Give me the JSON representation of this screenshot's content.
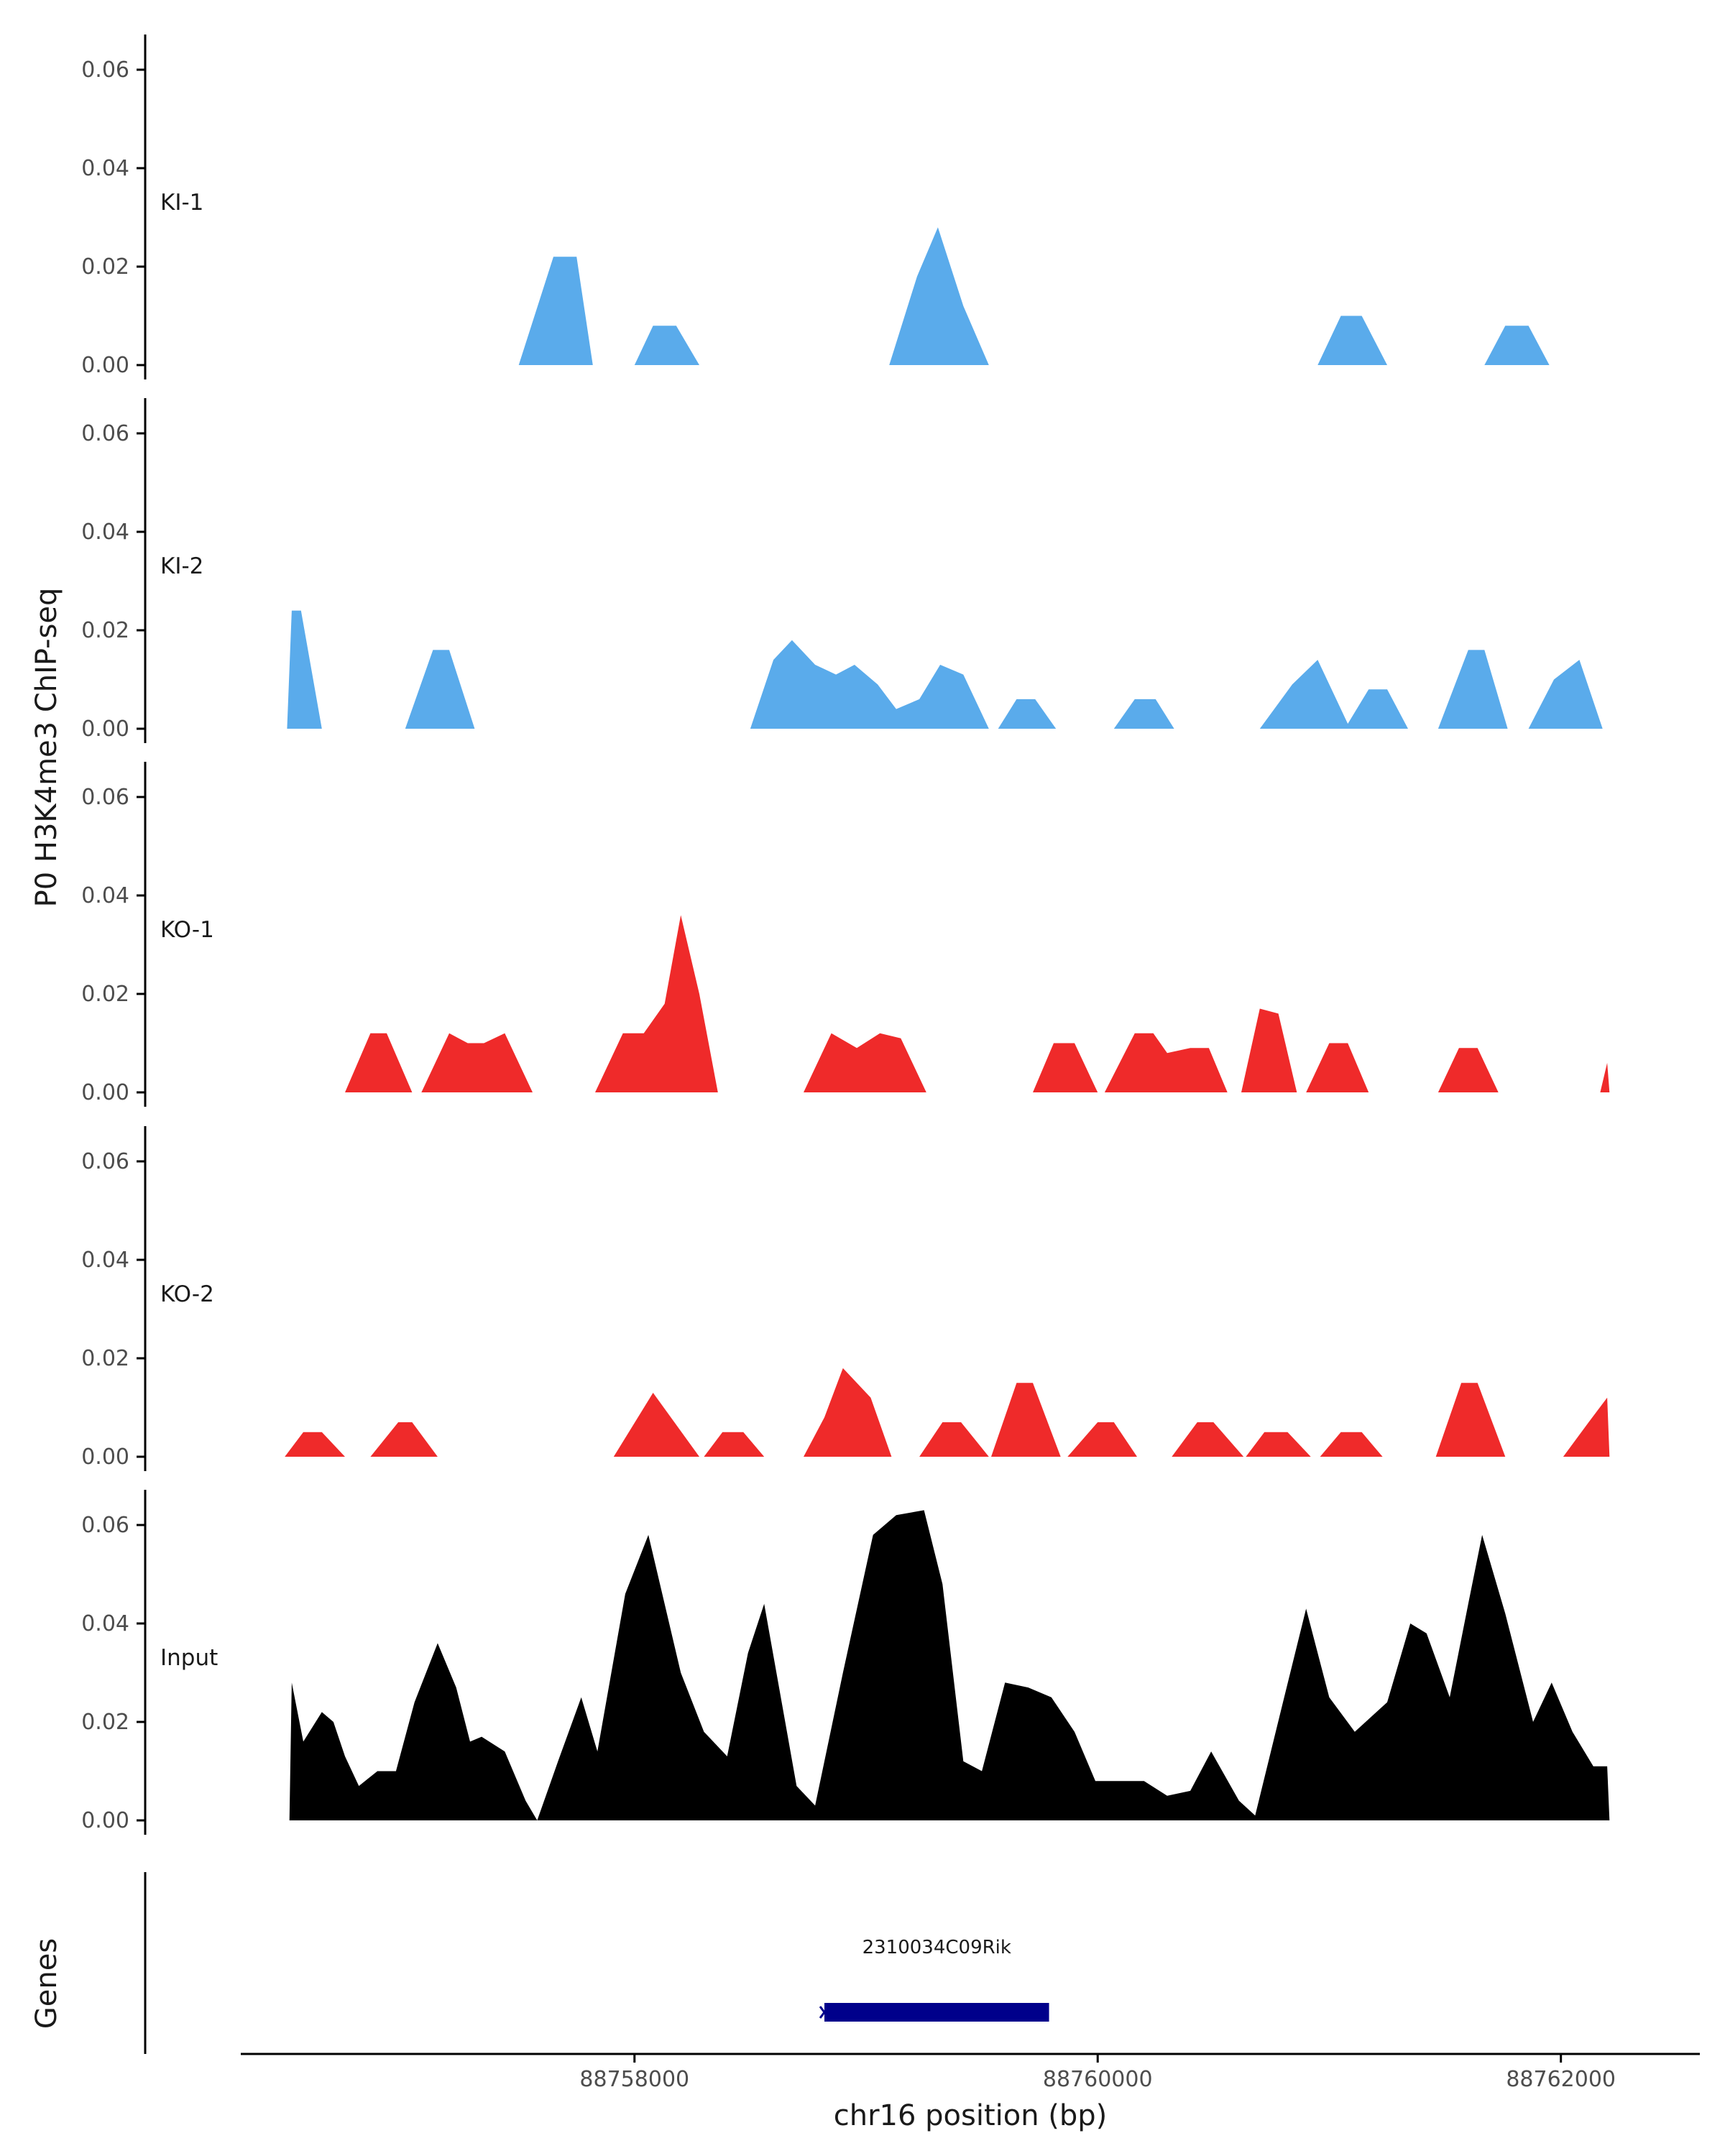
{
  "chart_data": {
    "type": "area",
    "ylabel": "P0 H3K4me3 ChIP-seq",
    "xlabel": "chr16 position (bp)",
    "xlim": [
      88756300,
      88762600
    ],
    "ylim": [
      0,
      0.068
    ],
    "x_ticks": [
      88758000,
      88760000,
      88762000
    ],
    "x_tick_labels": [
      "88758000",
      "88760000",
      "88762000"
    ],
    "y_ticks": [
      0,
      0.02,
      0.04,
      0.06
    ],
    "y_tick_labels": [
      "0.00",
      "0.02",
      "0.04",
      "0.06"
    ],
    "colors": {
      "KI": "#5aabeb",
      "KO": "#ef2a2a",
      "Input": "#000000",
      "gene": "#00008b"
    },
    "tracks": [
      {
        "name": "KI-1",
        "color": "#5aabeb",
        "peaks": [
          [
            [
              88757500,
              0
            ],
            [
              88757650,
              0.022
            ],
            [
              88757750,
              0.022
            ],
            [
              88757820,
              0
            ]
          ],
          [
            [
              88758000,
              0
            ],
            [
              88758080,
              0.008
            ],
            [
              88758180,
              0.008
            ],
            [
              88758280,
              0
            ]
          ],
          [
            [
              88759100,
              0
            ],
            [
              88759220,
              0.018
            ],
            [
              88759310,
              0.028
            ],
            [
              88759420,
              0.012
            ],
            [
              88759530,
              0
            ]
          ],
          [
            [
              88760950,
              0
            ],
            [
              88761050,
              0.01
            ],
            [
              88761140,
              0.01
            ],
            [
              88761250,
              0
            ]
          ],
          [
            [
              88761670,
              0
            ],
            [
              88761760,
              0.008
            ],
            [
              88761860,
              0.008
            ],
            [
              88761950,
              0
            ]
          ]
        ]
      },
      {
        "name": "KI-2",
        "color": "#5aabeb",
        "peaks": [
          [
            [
              88756500,
              0
            ],
            [
              88756520,
              0.024
            ],
            [
              88756560,
              0.024
            ],
            [
              88756650,
              0
            ]
          ],
          [
            [
              88757010,
              0
            ],
            [
              88757130,
              0.016
            ],
            [
              88757200,
              0.016
            ],
            [
              88757310,
              0
            ]
          ],
          [
            [
              88758500,
              0
            ],
            [
              88758600,
              0.014
            ],
            [
              88758680,
              0.018
            ],
            [
              88758780,
              0.013
            ],
            [
              88758870,
              0.011
            ],
            [
              88758950,
              0.013
            ],
            [
              88759050,
              0.009
            ],
            [
              88759130,
              0.004
            ],
            [
              88759230,
              0.006
            ],
            [
              88759320,
              0.013
            ],
            [
              88759420,
              0.011
            ],
            [
              88759530,
              0
            ]
          ],
          [
            [
              88759570,
              0
            ],
            [
              88759650,
              0.006
            ],
            [
              88759730,
              0.006
            ],
            [
              88759820,
              0
            ]
          ],
          [
            [
              88760070,
              0
            ],
            [
              88760160,
              0.006
            ],
            [
              88760250,
              0.006
            ],
            [
              88760330,
              0
            ]
          ],
          [
            [
              88760700,
              0
            ],
            [
              88760840,
              0.009
            ],
            [
              88760950,
              0.014
            ],
            [
              88761080,
              0.001
            ],
            [
              88761170,
              0.008
            ],
            [
              88761250,
              0.008
            ],
            [
              88761340,
              0
            ]
          ],
          [
            [
              88761470,
              0
            ],
            [
              88761600,
              0.016
            ],
            [
              88761670,
              0.016
            ],
            [
              88761770,
              0
            ]
          ],
          [
            [
              88761860,
              0
            ],
            [
              88761970,
              0.01
            ],
            [
              88762080,
              0.014
            ],
            [
              88762180,
              0
            ]
          ]
        ]
      },
      {
        "name": "KO-1",
        "color": "#ef2a2a",
        "peaks": [
          [
            [
              88756750,
              0
            ],
            [
              88756860,
              0.012
            ],
            [
              88756930,
              0.012
            ],
            [
              88757040,
              0
            ]
          ],
          [
            [
              88757080,
              0
            ],
            [
              88757200,
              0.012
            ],
            [
              88757280,
              0.01
            ],
            [
              88757350,
              0.01
            ],
            [
              88757440,
              0.012
            ],
            [
              88757560,
              0
            ]
          ],
          [
            [
              88757830,
              0
            ],
            [
              88757950,
              0.012
            ],
            [
              88758040,
              0.012
            ],
            [
              88758130,
              0.018
            ],
            [
              88758200,
              0.036
            ],
            [
              88758280,
              0.02
            ],
            [
              88758360,
              0
            ]
          ],
          [
            [
              88758730,
              0
            ],
            [
              88758850,
              0.012
            ],
            [
              88758960,
              0.009
            ],
            [
              88759060,
              0.012
            ],
            [
              88759150,
              0.011
            ],
            [
              88759260,
              0
            ]
          ],
          [
            [
              88759720,
              0
            ],
            [
              88759810,
              0.01
            ],
            [
              88759900,
              0.01
            ],
            [
              88760000,
              0
            ]
          ],
          [
            [
              88760030,
              0
            ],
            [
              88760160,
              0.012
            ],
            [
              88760240,
              0.012
            ],
            [
              88760300,
              0.008
            ],
            [
              88760400,
              0.009
            ],
            [
              88760480,
              0.009
            ],
            [
              88760560,
              0
            ]
          ],
          [
            [
              88760620,
              0
            ],
            [
              88760700,
              0.017
            ],
            [
              88760780,
              0.016
            ],
            [
              88760860,
              0
            ]
          ],
          [
            [
              88760900,
              0
            ],
            [
              88761000,
              0.01
            ],
            [
              88761080,
              0.01
            ],
            [
              88761170,
              0
            ]
          ],
          [
            [
              88761470,
              0
            ],
            [
              88761560,
              0.009
            ],
            [
              88761640,
              0.009
            ],
            [
              88761730,
              0
            ]
          ],
          [
            [
              88762170,
              0
            ],
            [
              88762200,
              0.006
            ],
            [
              88762210,
              0
            ]
          ]
        ]
      },
      {
        "name": "KO-2",
        "color": "#ef2a2a",
        "peaks": [
          [
            [
              88756490,
              0
            ],
            [
              88756570,
              0.005
            ],
            [
              88756650,
              0.005
            ],
            [
              88756750,
              0
            ]
          ],
          [
            [
              88756860,
              0
            ],
            [
              88756980,
              0.007
            ],
            [
              88757040,
              0.007
            ],
            [
              88757150,
              0
            ]
          ],
          [
            [
              88757910,
              0
            ],
            [
              88758080,
              0.013
            ],
            [
              88758280,
              0
            ]
          ],
          [
            [
              88758300,
              0
            ],
            [
              88758380,
              0.005
            ],
            [
              88758470,
              0.005
            ],
            [
              88758560,
              0
            ]
          ],
          [
            [
              88758730,
              0
            ],
            [
              88758820,
              0.008
            ],
            [
              88758900,
              0.018
            ],
            [
              88759020,
              0.012
            ],
            [
              88759110,
              0
            ]
          ],
          [
            [
              88759230,
              0
            ],
            [
              88759330,
              0.007
            ],
            [
              88759410,
              0.007
            ],
            [
              88759530,
              0
            ]
          ],
          [
            [
              88759540,
              0
            ],
            [
              88759650,
              0.015
            ],
            [
              88759720,
              0.015
            ],
            [
              88759840,
              0
            ]
          ],
          [
            [
              88759870,
              0
            ],
            [
              88760000,
              0.007
            ],
            [
              88760070,
              0.007
            ],
            [
              88760170,
              0
            ]
          ],
          [
            [
              88760320,
              0
            ],
            [
              88760430,
              0.007
            ],
            [
              88760500,
              0.007
            ],
            [
              88760630,
              0
            ]
          ],
          [
            [
              88760640,
              0
            ],
            [
              88760720,
              0.005
            ],
            [
              88760820,
              0.005
            ],
            [
              88760920,
              0
            ]
          ],
          [
            [
              88760960,
              0
            ],
            [
              88761050,
              0.005
            ],
            [
              88761140,
              0.005
            ],
            [
              88761230,
              0
            ]
          ],
          [
            [
              88761460,
              0
            ],
            [
              88761570,
              0.015
            ],
            [
              88761640,
              0.015
            ],
            [
              88761760,
              0
            ]
          ],
          [
            [
              88762010,
              0
            ],
            [
              88762120,
              0.007
            ],
            [
              88762200,
              0.012
            ],
            [
              88762210,
              0
            ]
          ]
        ]
      },
      {
        "name": "Input",
        "color": "#000000",
        "peaks": [
          [
            [
              88756510,
              0
            ],
            [
              88756520,
              0.028
            ],
            [
              88756570,
              0.016
            ],
            [
              88756650,
              0.022
            ],
            [
              88756700,
              0.02
            ],
            [
              88756750,
              0.013
            ],
            [
              88756810,
              0.007
            ],
            [
              88756890,
              0.01
            ],
            [
              88756970,
              0.01
            ],
            [
              88757050,
              0.024
            ],
            [
              88757150,
              0.036
            ],
            [
              88757230,
              0.027
            ],
            [
              88757290,
              0.016
            ],
            [
              88757340,
              0.017
            ],
            [
              88757440,
              0.014
            ],
            [
              88757530,
              0.004
            ],
            [
              88757580,
              0
            ],
            [
              88757670,
              0.012
            ],
            [
              88757770,
              0.025
            ],
            [
              88757840,
              0.014
            ],
            [
              88757960,
              0.046
            ],
            [
              88758060,
              0.058
            ],
            [
              88758200,
              0.03
            ],
            [
              88758300,
              0.018
            ],
            [
              88758400,
              0.013
            ],
            [
              88758490,
              0.034
            ],
            [
              88758560,
              0.044
            ],
            [
              88758700,
              0.007
            ],
            [
              88758780,
              0.003
            ],
            [
              88758900,
              0.03
            ],
            [
              88759030,
              0.058
            ],
            [
              88759130,
              0.062
            ],
            [
              88759250,
              0.063
            ],
            [
              88759330,
              0.048
            ],
            [
              88759420,
              0.012
            ],
            [
              88759500,
              0.01
            ],
            [
              88759600,
              0.028
            ],
            [
              88759700,
              0.027
            ],
            [
              88759800,
              0.025
            ],
            [
              88759900,
              0.018
            ],
            [
              88759990,
              0.008
            ],
            [
              88760100,
              0.008
            ],
            [
              88760200,
              0.008
            ],
            [
              88760300,
              0.005
            ],
            [
              88760400,
              0.006
            ],
            [
              88760490,
              0.014
            ],
            [
              88760610,
              0.004
            ],
            [
              88760680,
              0.001
            ],
            [
              88760800,
              0.024
            ],
            [
              88760900,
              0.043
            ],
            [
              88761000,
              0.025
            ],
            [
              88761110,
              0.018
            ],
            [
              88761250,
              0.024
            ],
            [
              88761350,
              0.04
            ],
            [
              88761420,
              0.038
            ],
            [
              88761520,
              0.025
            ],
            [
              88761600,
              0.044
            ],
            [
              88761660,
              0.058
            ],
            [
              88761760,
              0.042
            ],
            [
              88761880,
              0.02
            ],
            [
              88761960,
              0.028
            ],
            [
              88762050,
              0.018
            ],
            [
              88762140,
              0.011
            ],
            [
              88762200,
              0.011
            ],
            [
              88762210,
              0
            ]
          ]
        ]
      }
    ],
    "genes": [
      {
        "name": "2310034C09Rik",
        "start": 88758820,
        "end": 88759790,
        "strand": "-"
      }
    ],
    "gene_panel_label": "Genes"
  }
}
